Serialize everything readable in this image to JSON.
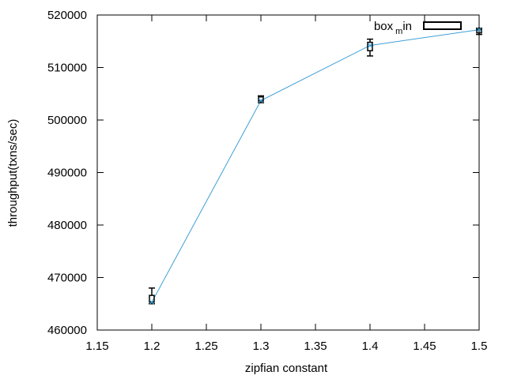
{
  "chart_data": {
    "type": "line",
    "title": "",
    "xlabel": "zipfian constant",
    "ylabel": "throughput(txns/sec)",
    "xlim": [
      1.15,
      1.5
    ],
    "ylim": [
      460000,
      520000
    ],
    "x_ticks": [
      "1.15",
      "1.2",
      "1.25",
      "1.3",
      "1.35",
      "1.4",
      "1.45",
      "1.5"
    ],
    "y_ticks": [
      "460000",
      "470000",
      "480000",
      "490000",
      "500000",
      "510000",
      "520000"
    ],
    "grid": false,
    "legend": {
      "position": "top-right",
      "entries": [
        {
          "label_base": "box",
          "label_sub": "m",
          "label_tail": "in",
          "style": "box"
        }
      ]
    },
    "line_color": "#3fa0d6",
    "series": [
      {
        "x": [
          1.2,
          1.3,
          1.4,
          1.5
        ],
        "y": [
          465300,
          503700,
          514200,
          517200
        ]
      }
    ],
    "boxes": [
      {
        "x": 1.2,
        "whisker_low": 465000,
        "q1": 465300,
        "q3": 466600,
        "whisker_high": 468000
      },
      {
        "x": 1.3,
        "whisker_low": 503300,
        "q1": 503600,
        "q3": 504400,
        "whisker_high": 504600
      },
      {
        "x": 1.4,
        "whisker_low": 512200,
        "q1": 513200,
        "q3": 514800,
        "whisker_high": 515400
      },
      {
        "x": 1.5,
        "whisker_low": 516300,
        "q1": 516600,
        "q3": 517300,
        "whisker_high": 517500
      }
    ]
  }
}
